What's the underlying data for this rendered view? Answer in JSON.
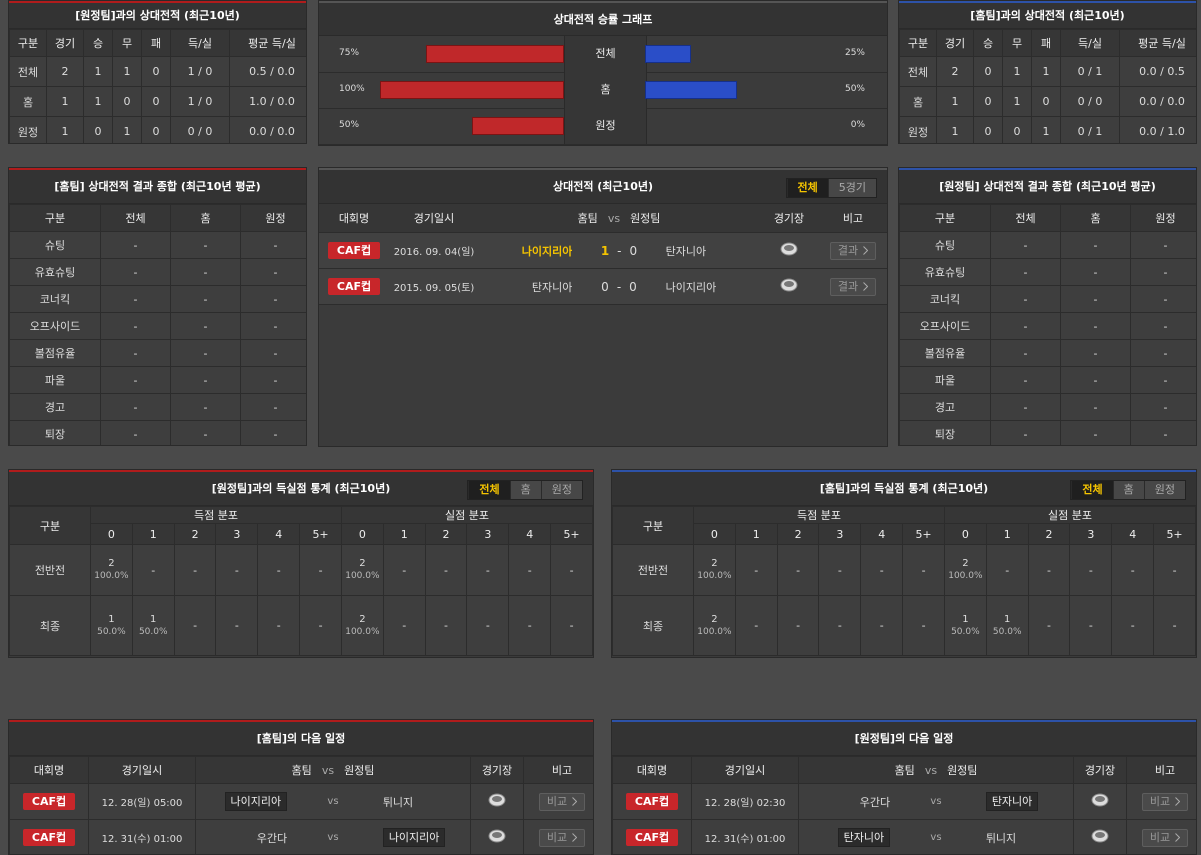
{
  "record_vs_away": {
    "title": "[원정팀]과의 상대전적 (최근10년)",
    "headers": [
      "구분",
      "경기",
      "승",
      "무",
      "패",
      "득/실",
      "평균 득/실"
    ],
    "rows": [
      [
        "전체",
        "2",
        "1",
        "1",
        "0",
        "1 / 0",
        "0.5 / 0.0"
      ],
      [
        "홈",
        "1",
        "1",
        "0",
        "0",
        "1 / 0",
        "1.0 / 0.0"
      ],
      [
        "원정",
        "1",
        "0",
        "1",
        "0",
        "0 / 0",
        "0.0 / 0.0"
      ]
    ]
  },
  "win_rate_graph": {
    "title": "상대전적 승률 그래프",
    "categories": [
      "전체",
      "홈",
      "원정"
    ],
    "home": {
      "color": "#c0282a",
      "values": [
        75,
        100,
        50
      ],
      "value_labels": [
        "75%",
        "100%",
        "50%"
      ]
    },
    "away": {
      "color": "#2a4ec8",
      "values": [
        25,
        50,
        0
      ],
      "value_labels": [
        "25%",
        "50%",
        "0%"
      ]
    }
  },
  "record_vs_home": {
    "title": "[홈팀]과의 상대전적 (최근10년)",
    "headers": [
      "구분",
      "경기",
      "승",
      "무",
      "패",
      "득/실",
      "평균 득/실"
    ],
    "rows": [
      [
        "전체",
        "2",
        "0",
        "1",
        "1",
        "0 / 1",
        "0.0 / 0.5"
      ],
      [
        "홈",
        "1",
        "0",
        "1",
        "0",
        "0 / 0",
        "0.0 / 0.0"
      ],
      [
        "원정",
        "1",
        "0",
        "0",
        "1",
        "0 / 1",
        "0.0 / 1.0"
      ]
    ]
  },
  "home_summary": {
    "title": "[홈팀] 상대전적 결과 종합 (최근10년 평균)",
    "headers": [
      "구분",
      "전체",
      "홈",
      "원정"
    ],
    "rows": [
      [
        "슈팅",
        "-",
        "-",
        "-"
      ],
      [
        "유효슈팅",
        "-",
        "-",
        "-"
      ],
      [
        "코너킥",
        "-",
        "-",
        "-"
      ],
      [
        "오프사이드",
        "-",
        "-",
        "-"
      ],
      [
        "볼점유율",
        "-",
        "-",
        "-"
      ],
      [
        "파울",
        "-",
        "-",
        "-"
      ],
      [
        "경고",
        "-",
        "-",
        "-"
      ],
      [
        "퇴장",
        "-",
        "-",
        "-"
      ]
    ]
  },
  "h2h": {
    "title": "상대전적 (최근10년)",
    "tabs": [
      "전체",
      "5경기"
    ],
    "headers": [
      "대회명",
      "경기일시",
      [
        "홈팀",
        "vs",
        "원정팀"
      ],
      "경기장",
      "비고"
    ],
    "matches": [
      {
        "competition": "CAF컵",
        "date": "2016. 09. 04(일)",
        "home": "나이지리아",
        "home_score": "1",
        "sep": "-",
        "away_score": "0",
        "away": "탄자니아",
        "note": "결과",
        "winner": "home"
      },
      {
        "competition": "CAF컵",
        "date": "2015. 09. 05(토)",
        "home": "탄자니아",
        "home_score": "0",
        "sep": "-",
        "away_score": "0",
        "away": "나이지리아",
        "note": "결과"
      }
    ]
  },
  "away_summary": {
    "title": "[원정팀] 상대전적 결과 종합 (최근10년 평균)",
    "headers": [
      "구분",
      "전체",
      "홈",
      "원정"
    ],
    "rows": [
      [
        "슈팅",
        "-",
        "-",
        "-"
      ],
      [
        "유효슈팅",
        "-",
        "-",
        "-"
      ],
      [
        "코너킥",
        "-",
        "-",
        "-"
      ],
      [
        "오프사이드",
        "-",
        "-",
        "-"
      ],
      [
        "볼점유율",
        "-",
        "-",
        "-"
      ],
      [
        "파울",
        "-",
        "-",
        "-"
      ],
      [
        "경고",
        "-",
        "-",
        "-"
      ],
      [
        "퇴장",
        "-",
        "-",
        "-"
      ]
    ]
  },
  "goals_vs_away": {
    "title": "[원정팀]과의 득실점 통계 (최근10년)",
    "tabs": [
      "전체",
      "홈",
      "원정"
    ],
    "headers": [
      "구분",
      "득점 분포",
      "실점 분포"
    ],
    "buckets": [
      "0",
      "1",
      "2",
      "3",
      "4",
      "5+"
    ],
    "rows": [
      {
        "label": "전반전",
        "cells": [
          {
            "count": "2",
            "pct": "100.0%"
          },
          "-",
          "-",
          "-",
          "-",
          "-",
          {
            "count": "2",
            "pct": "100.0%"
          },
          "-",
          "-",
          "-",
          "-",
          "-"
        ]
      },
      {
        "label": "최종",
        "cells": [
          {
            "count": "1",
            "pct": "50.0%"
          },
          {
            "count": "1",
            "pct": "50.0%"
          },
          "-",
          "-",
          "-",
          "-",
          {
            "count": "2",
            "pct": "100.0%"
          },
          "-",
          "-",
          "-",
          "-",
          "-"
        ]
      }
    ]
  },
  "goals_vs_home": {
    "title": "[홈팀]과의 득실점 통계 (최근10년)",
    "tabs": [
      "전체",
      "홈",
      "원정"
    ],
    "headers": [
      "구분",
      "득점 분포",
      "실점 분포"
    ],
    "buckets": [
      "0",
      "1",
      "2",
      "3",
      "4",
      "5+"
    ],
    "rows": [
      {
        "label": "전반전",
        "cells": [
          {
            "count": "2",
            "pct": "100.0%"
          },
          "-",
          "-",
          "-",
          "-",
          "-",
          {
            "count": "2",
            "pct": "100.0%"
          },
          "-",
          "-",
          "-",
          "-",
          "-"
        ]
      },
      {
        "label": "최종",
        "cells": [
          {
            "count": "2",
            "pct": "100.0%"
          },
          "-",
          "-",
          "-",
          "-",
          "-",
          {
            "count": "1",
            "pct": "50.0%"
          },
          {
            "count": "1",
            "pct": "50.0%"
          },
          "-",
          "-",
          "-",
          "-"
        ]
      }
    ]
  },
  "home_next": {
    "title": "[홈팀]의 다음 일정",
    "headers": [
      "대회명",
      "경기일시",
      [
        "홈팀",
        "vs",
        "원정팀"
      ],
      "경기장",
      "비고"
    ],
    "matches": [
      {
        "competition": "CAF컵",
        "datetime": "12. 28(일) 05:00",
        "home": "나이지리아",
        "vs": "vs",
        "away": "튀니지",
        "note": "비교",
        "highlight": "home"
      },
      {
        "competition": "CAF컵",
        "datetime": "12. 31(수) 01:00",
        "home": "우간다",
        "vs": "vs",
        "away": "나이지리아",
        "note": "비교",
        "highlight": "away"
      }
    ]
  },
  "away_next": {
    "title": "[원정팀]의 다음 일정",
    "headers": [
      "대회명",
      "경기일시",
      [
        "홈팀",
        "vs",
        "원정팀"
      ],
      "경기장",
      "비고"
    ],
    "matches": [
      {
        "competition": "CAF컵",
        "datetime": "12. 28(일) 02:30",
        "home": "우간다",
        "vs": "vs",
        "away": "탄자니아",
        "note": "비교",
        "highlight": "away"
      },
      {
        "competition": "CAF컵",
        "datetime": "12. 31(수) 01:00",
        "home": "탄자니아",
        "vs": "vs",
        "away": "튀니지",
        "note": "비교",
        "highlight": "home"
      }
    ]
  }
}
